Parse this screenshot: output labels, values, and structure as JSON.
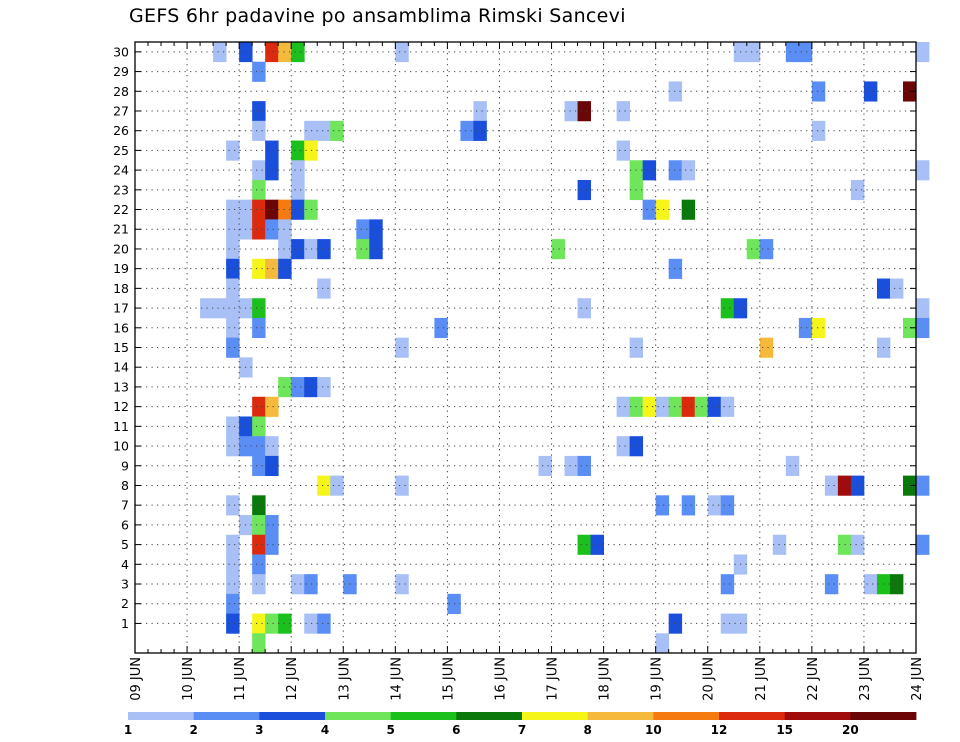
{
  "chart_data": {
    "type": "heatmap",
    "title": "GEFS 6hr padavine po ansamblima Rimski Sancevi",
    "xlabel": "",
    "ylabel": "",
    "x_ticks": [
      "09 JUN",
      "10 JUN",
      "11 JUN",
      "12 JUN",
      "13 JUN",
      "14 JUN",
      "15 JUN",
      "16 JUN",
      "17 JUN",
      "18 JUN",
      "19 JUN",
      "20 JUN",
      "21 JUN",
      "22 JUN",
      "23 JUN",
      "24 JUN"
    ],
    "y_ticks": [
      "1",
      "2",
      "3",
      "4",
      "5",
      "6",
      "7",
      "8",
      "9",
      "10",
      "11",
      "12",
      "13",
      "14",
      "15",
      "16",
      "17",
      "18",
      "19",
      "20",
      "21",
      "22",
      "23",
      "24",
      "25",
      "26",
      "27",
      "28",
      "29",
      "30"
    ],
    "xlim": [
      "09 JUN",
      "24 JUN"
    ],
    "ylim": [
      0,
      30
    ],
    "grid": true,
    "colorbar": {
      "tick_labels": [
        "1",
        "2",
        "3",
        "4",
        "5",
        "6",
        "7",
        "8",
        "10",
        "12",
        "15",
        "20"
      ],
      "colors": [
        "#a8c0f5",
        "#5a8ef5",
        "#1a4fdc",
        "#6ee55a",
        "#1cc01c",
        "#0a780a",
        "#f5f51a",
        "#f5ba3c",
        "#f57a10",
        "#dc2a0e",
        "#a00c0c",
        "#6a0606"
      ]
    },
    "cells": [
      [
        30,
        6,
        0
      ],
      [
        30,
        8,
        2
      ],
      [
        30,
        10,
        9
      ],
      [
        30,
        11,
        7
      ],
      [
        30,
        12,
        4
      ],
      [
        30,
        20,
        0
      ],
      [
        30,
        46,
        0
      ],
      [
        30,
        47,
        0
      ],
      [
        30,
        50,
        1
      ],
      [
        30,
        51,
        1
      ],
      [
        30,
        60,
        0
      ],
      [
        29,
        9,
        1
      ],
      [
        28,
        41,
        0
      ],
      [
        28,
        52,
        1
      ],
      [
        28,
        56,
        2
      ],
      [
        28,
        59,
        11
      ],
      [
        27,
        9,
        2
      ],
      [
        27,
        26,
        0
      ],
      [
        27,
        33,
        0
      ],
      [
        27,
        34,
        11
      ],
      [
        27,
        37,
        0
      ],
      [
        26,
        9,
        0
      ],
      [
        26,
        13,
        0
      ],
      [
        26,
        14,
        0
      ],
      [
        26,
        15,
        3
      ],
      [
        26,
        25,
        1
      ],
      [
        26,
        26,
        2
      ],
      [
        26,
        52,
        0
      ],
      [
        25,
        7,
        0
      ],
      [
        25,
        10,
        2
      ],
      [
        25,
        12,
        4
      ],
      [
        25,
        13,
        6
      ],
      [
        25,
        37,
        0
      ],
      [
        24,
        9,
        0
      ],
      [
        24,
        10,
        2
      ],
      [
        24,
        12,
        0
      ],
      [
        24,
        38,
        3
      ],
      [
        24,
        39,
        2
      ],
      [
        24,
        41,
        1
      ],
      [
        24,
        42,
        0
      ],
      [
        24,
        60,
        0
      ],
      [
        23,
        9,
        3
      ],
      [
        23,
        12,
        0
      ],
      [
        23,
        34,
        2
      ],
      [
        23,
        38,
        3
      ],
      [
        23,
        55,
        0
      ],
      [
        22,
        7,
        0
      ],
      [
        22,
        8,
        0
      ],
      [
        22,
        9,
        9
      ],
      [
        22,
        10,
        11
      ],
      [
        22,
        11,
        8
      ],
      [
        22,
        12,
        2
      ],
      [
        22,
        13,
        3
      ],
      [
        22,
        39,
        1
      ],
      [
        22,
        40,
        6
      ],
      [
        22,
        42,
        5
      ],
      [
        21,
        7,
        0
      ],
      [
        21,
        8,
        0
      ],
      [
        21,
        9,
        9
      ],
      [
        21,
        10,
        1
      ],
      [
        21,
        11,
        0
      ],
      [
        21,
        17,
        1
      ],
      [
        21,
        18,
        2
      ],
      [
        20,
        7,
        0
      ],
      [
        20,
        11,
        0
      ],
      [
        20,
        12,
        2
      ],
      [
        20,
        13,
        0
      ],
      [
        20,
        14,
        2
      ],
      [
        20,
        17,
        3
      ],
      [
        20,
        18,
        2
      ],
      [
        20,
        32,
        3
      ],
      [
        20,
        47,
        3
      ],
      [
        20,
        48,
        1
      ],
      [
        19,
        7,
        2
      ],
      [
        19,
        9,
        6
      ],
      [
        19,
        10,
        7
      ],
      [
        19,
        11,
        2
      ],
      [
        19,
        41,
        1
      ],
      [
        18,
        7,
        0
      ],
      [
        18,
        14,
        0
      ],
      [
        18,
        57,
        2
      ],
      [
        18,
        58,
        0
      ],
      [
        17,
        5,
        0
      ],
      [
        17,
        6,
        0
      ],
      [
        17,
        7,
        0
      ],
      [
        17,
        8,
        0
      ],
      [
        17,
        9,
        4
      ],
      [
        17,
        34,
        0
      ],
      [
        17,
        45,
        4
      ],
      [
        17,
        46,
        2
      ],
      [
        17,
        60,
        0
      ],
      [
        16,
        7,
        0
      ],
      [
        16,
        9,
        1
      ],
      [
        16,
        23,
        1
      ],
      [
        16,
        51,
        1
      ],
      [
        16,
        52,
        6
      ],
      [
        16,
        59,
        3
      ],
      [
        16,
        60,
        1
      ],
      [
        15,
        7,
        1
      ],
      [
        15,
        20,
        0
      ],
      [
        15,
        38,
        0
      ],
      [
        15,
        48,
        7
      ],
      [
        15,
        57,
        0
      ],
      [
        14,
        8,
        0
      ],
      [
        13,
        11,
        3
      ],
      [
        13,
        12,
        1
      ],
      [
        13,
        13,
        2
      ],
      [
        13,
        14,
        0
      ],
      [
        12,
        9,
        9
      ],
      [
        12,
        10,
        7
      ],
      [
        12,
        37,
        0
      ],
      [
        12,
        38,
        3
      ],
      [
        12,
        39,
        6
      ],
      [
        12,
        40,
        0
      ],
      [
        12,
        41,
        3
      ],
      [
        12,
        42,
        9
      ],
      [
        12,
        43,
        3
      ],
      [
        12,
        44,
        2
      ],
      [
        12,
        45,
        0
      ],
      [
        11,
        7,
        0
      ],
      [
        11,
        8,
        2
      ],
      [
        11,
        9,
        3
      ],
      [
        10,
        7,
        0
      ],
      [
        10,
        8,
        1
      ],
      [
        10,
        9,
        1
      ],
      [
        10,
        10,
        0
      ],
      [
        10,
        37,
        0
      ],
      [
        10,
        38,
        2
      ],
      [
        9,
        9,
        1
      ],
      [
        9,
        10,
        2
      ],
      [
        9,
        31,
        0
      ],
      [
        9,
        33,
        0
      ],
      [
        9,
        34,
        1
      ],
      [
        9,
        50,
        0
      ],
      [
        8,
        14,
        6
      ],
      [
        8,
        15,
        0
      ],
      [
        8,
        20,
        0
      ],
      [
        8,
        53,
        0
      ],
      [
        8,
        54,
        10
      ],
      [
        8,
        55,
        2
      ],
      [
        8,
        59,
        5
      ],
      [
        8,
        60,
        1
      ],
      [
        7,
        7,
        0
      ],
      [
        7,
        9,
        5
      ],
      [
        7,
        40,
        1
      ],
      [
        7,
        42,
        1
      ],
      [
        7,
        44,
        0
      ],
      [
        7,
        45,
        1
      ],
      [
        6,
        8,
        0
      ],
      [
        6,
        9,
        3
      ],
      [
        6,
        10,
        1
      ],
      [
        5,
        7,
        0
      ],
      [
        5,
        9,
        9
      ],
      [
        5,
        10,
        1
      ],
      [
        5,
        34,
        4
      ],
      [
        5,
        35,
        2
      ],
      [
        5,
        49,
        0
      ],
      [
        5,
        54,
        3
      ],
      [
        5,
        55,
        0
      ],
      [
        5,
        60,
        1
      ],
      [
        4,
        7,
        0
      ],
      [
        4,
        9,
        1
      ],
      [
        4,
        46,
        0
      ],
      [
        3,
        7,
        0
      ],
      [
        3,
        9,
        0
      ],
      [
        3,
        12,
        0
      ],
      [
        3,
        13,
        1
      ],
      [
        3,
        16,
        1
      ],
      [
        3,
        20,
        0
      ],
      [
        3,
        45,
        1
      ],
      [
        3,
        53,
        1
      ],
      [
        3,
        56,
        0
      ],
      [
        3,
        57,
        4
      ],
      [
        3,
        58,
        5
      ],
      [
        2,
        7,
        1
      ],
      [
        2,
        24,
        1
      ],
      [
        1,
        7,
        2
      ],
      [
        1,
        9,
        6
      ],
      [
        1,
        10,
        3
      ],
      [
        1,
        11,
        4
      ],
      [
        1,
        13,
        0
      ],
      [
        1,
        14,
        1
      ],
      [
        1,
        41,
        2
      ],
      [
        1,
        45,
        0
      ],
      [
        1,
        46,
        0
      ],
      [
        0,
        9,
        3
      ],
      [
        0,
        40,
        0
      ]
    ]
  }
}
